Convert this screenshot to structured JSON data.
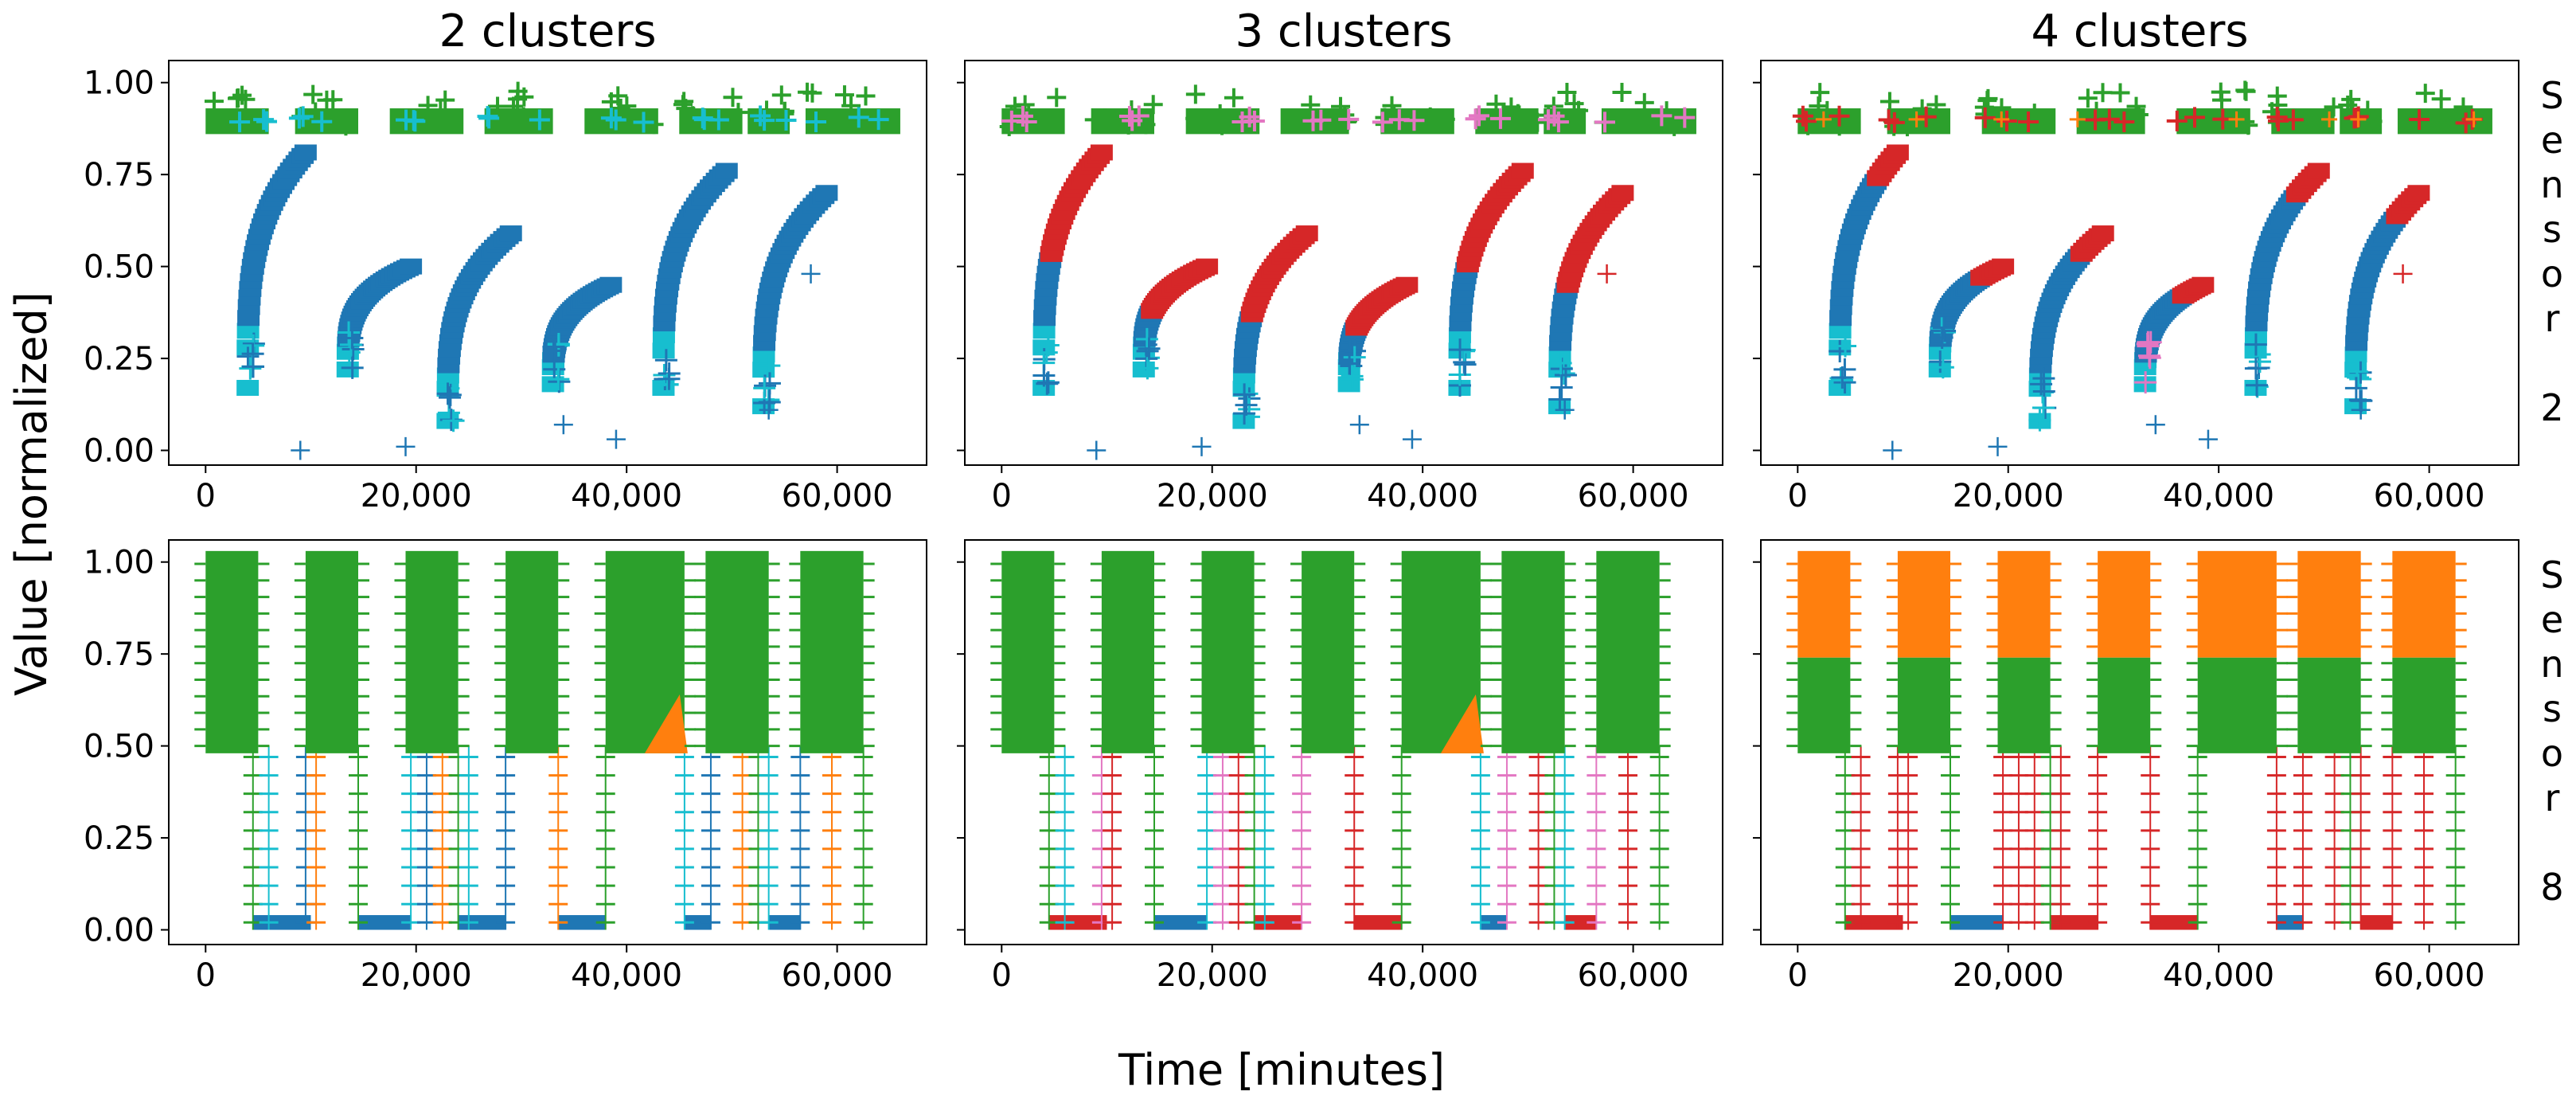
{
  "figure": {
    "ylabel": "Value [normalized]",
    "xlabel": "Time [minutes]"
  },
  "palette": {
    "blue": "#1f77b4",
    "orange": "#ff7f0e",
    "green": "#2ca02c",
    "red": "#d62728",
    "pink": "#e377c2",
    "cyan": "#17becf"
  },
  "chart_data": {
    "type": "scatter",
    "marker": "plus",
    "columns": [
      "2 clusters",
      "3 clusters",
      "4 clusters"
    ],
    "rows": [
      "Sensor 2",
      "Sensor 8"
    ],
    "xlim": [
      -3500,
      68500
    ],
    "ylim": [
      -0.04,
      1.06
    ],
    "xticks": [
      0,
      20000,
      40000,
      60000
    ],
    "xtick_labels": [
      "0",
      "20,000",
      "40,000",
      "60,000"
    ],
    "yticks": [
      0.0,
      0.25,
      0.5,
      0.75,
      1.0
    ],
    "ytick_labels": [
      "0.00",
      "0.25",
      "0.50",
      "0.75",
      "1.00"
    ],
    "sensor2": {
      "operating_band": [
        0.86,
        0.93
      ],
      "band_segments": [
        [
          0,
          6000
        ],
        [
          8500,
          14500
        ],
        [
          17500,
          24500
        ],
        [
          26500,
          33000
        ],
        [
          36000,
          43000
        ],
        [
          45000,
          51000
        ],
        [
          51500,
          55500
        ],
        [
          57000,
          66000
        ]
      ],
      "ramps": [
        {
          "x": [
            4000,
            9500
          ],
          "y": [
            0.17,
            0.81
          ]
        },
        {
          "x": [
            13500,
            19500
          ],
          "y": [
            0.22,
            0.5
          ]
        },
        {
          "x": [
            23000,
            29000
          ],
          "y": [
            0.08,
            0.59
          ]
        },
        {
          "x": [
            33000,
            38500
          ],
          "y": [
            0.18,
            0.45
          ]
        },
        {
          "x": [
            43500,
            49500
          ],
          "y": [
            0.17,
            0.76
          ]
        },
        {
          "x": [
            53000,
            59000
          ],
          "y": [
            0.12,
            0.7
          ]
        }
      ],
      "outliers": [
        [
          9000,
          0.0
        ],
        [
          19000,
          0.01
        ],
        [
          34000,
          0.07
        ],
        [
          39000,
          0.03
        ],
        [
          53500,
          0.11
        ],
        [
          57500,
          0.48
        ]
      ]
    },
    "sensor8": {
      "high_blocks": [
        [
          0,
          5000
        ],
        [
          9500,
          14500
        ],
        [
          19000,
          24000
        ],
        [
          28500,
          33500
        ],
        [
          38000,
          45500
        ],
        [
          47500,
          53500
        ],
        [
          56500,
          62500
        ]
      ],
      "high_range": [
        0.48,
        1.03
      ],
      "low_segments": [
        [
          4500,
          10000
        ],
        [
          14500,
          19500
        ],
        [
          24000,
          28500
        ],
        [
          33500,
          38000
        ],
        [
          45500,
          48000
        ],
        [
          53500,
          56500
        ]
      ],
      "low_range": [
        0.0,
        0.04
      ],
      "vertical_lines": [
        4500,
        6000,
        9500,
        10500,
        14500,
        19500,
        21000,
        22500,
        24000,
        25000,
        28500,
        33500,
        38000,
        45500,
        48000,
        51000,
        52500,
        53500,
        56500,
        59500,
        62500
      ]
    }
  }
}
